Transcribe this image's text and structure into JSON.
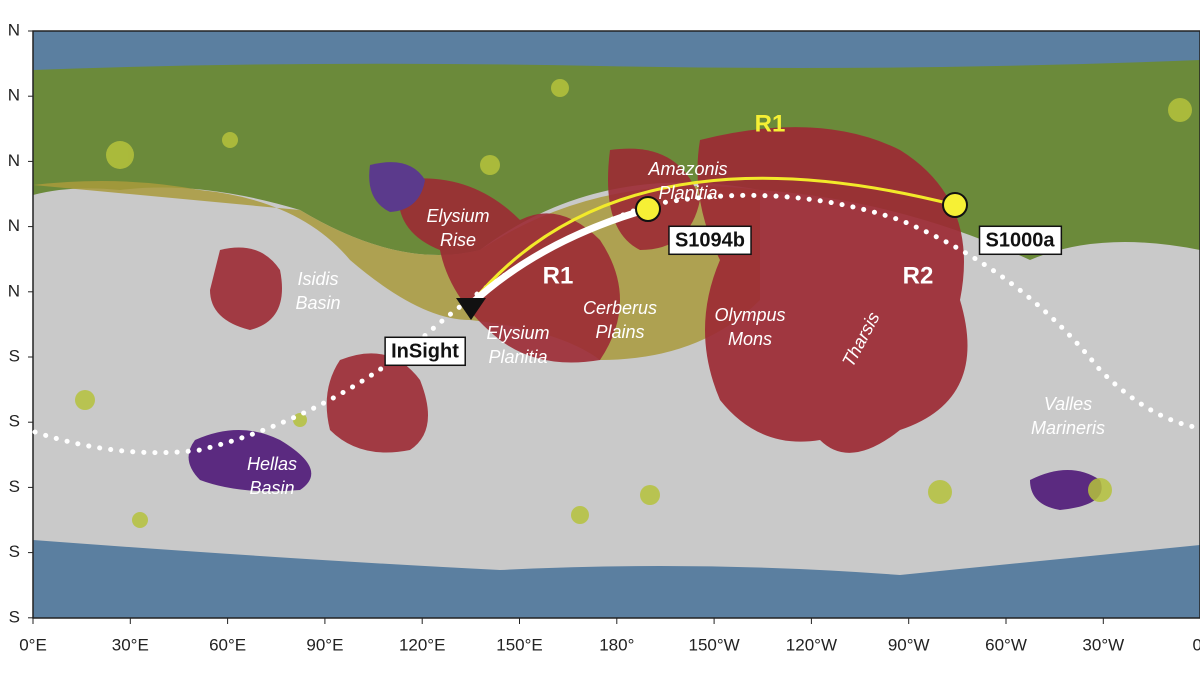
{
  "map": {
    "lat_labels": [
      "N",
      "N",
      "N",
      "N",
      "N",
      "S",
      "S",
      "S",
      "S",
      "S"
    ],
    "lon_labels": [
      "0°E",
      "30°E",
      "60°E",
      "90°E",
      "120°E",
      "150°E",
      "180°",
      "150°W",
      "120°W",
      "90°W",
      "60°W",
      "30°W",
      "0°"
    ],
    "stations": [
      {
        "label": "InSight"
      },
      {
        "label": "S1094b"
      },
      {
        "label": "S1000a"
      }
    ],
    "path_labels": [
      {
        "label": "R1"
      },
      {
        "label": "R1"
      },
      {
        "label": "R2"
      }
    ],
    "place_names": [
      {
        "lines": [
          "Elysium",
          "Rise"
        ]
      },
      {
        "lines": [
          "Isidis",
          "Basin"
        ]
      },
      {
        "lines": [
          "Hellas",
          "Basin"
        ]
      },
      {
        "lines": [
          "Amazonis",
          "Planitia"
        ]
      },
      {
        "lines": [
          "Cerberus",
          "Plains"
        ]
      },
      {
        "lines": [
          "Olympus",
          "Mons"
        ]
      },
      {
        "lines": [
          "Elysium",
          "Planitia"
        ]
      },
      {
        "lines": [
          "Tharsis"
        ]
      },
      {
        "lines": [
          "Valles",
          "Marineris"
        ]
      }
    ]
  }
}
